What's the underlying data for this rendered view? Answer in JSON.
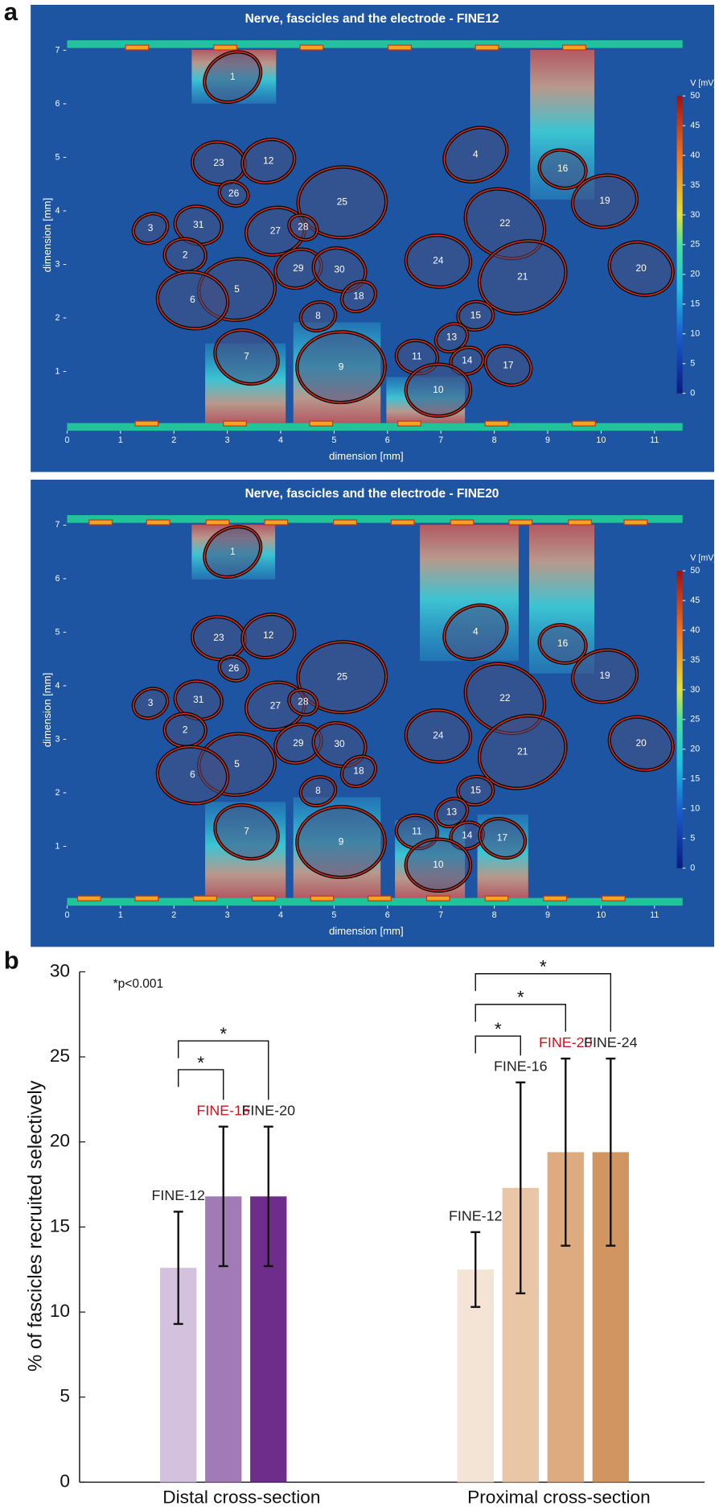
{
  "panel_labels": [
    "a",
    "b"
  ],
  "chart_data": [
    {
      "type": "fascicle-map",
      "title": "Nerve, fascicles and the electrode - FINE12",
      "xlabel": "dimension [mm]",
      "ylabel": "dimension [mm]",
      "xlim": [
        0,
        11.5
      ],
      "ylim": [
        0,
        7.2
      ],
      "xticks": [
        0,
        1,
        2,
        3,
        4,
        5,
        6,
        7,
        8,
        9,
        10,
        11
      ],
      "yticks": [
        1,
        2,
        3,
        4,
        5,
        6,
        7
      ],
      "colorbar_label": "V [mV]",
      "clim": [
        0,
        50
      ],
      "cticks": [
        0,
        5,
        10,
        15,
        20,
        25,
        30,
        35,
        40,
        45,
        50
      ],
      "fascicles": {
        "labels": [
          "1",
          "23",
          "12",
          "26",
          "25",
          "3",
          "31",
          "27",
          "28",
          "2",
          "29",
          "30",
          "5",
          "18",
          "6",
          "8",
          "7",
          "9",
          "4",
          "16",
          "19",
          "22",
          "24",
          "21",
          "20",
          "15",
          "13",
          "11",
          "14",
          "17",
          "10"
        ],
        "x": [
          3.1,
          2.84,
          3.77,
          3.12,
          5.15,
          1.56,
          2.46,
          3.9,
          4.42,
          2.21,
          4.33,
          5.1,
          3.18,
          5.46,
          2.35,
          4.7,
          3.36,
          5.13,
          7.65,
          9.28,
          10.07,
          8.2,
          6.95,
          8.53,
          10.75,
          7.65,
          7.2,
          6.55,
          7.49,
          8.26,
          6.95
        ],
        "y": [
          6.5,
          4.89,
          4.93,
          4.32,
          4.16,
          3.67,
          3.73,
          3.62,
          3.69,
          3.17,
          2.92,
          2.9,
          2.53,
          2.4,
          2.33,
          2.03,
          1.27,
          1.08,
          5.05,
          4.78,
          4.18,
          3.76,
          3.06,
          2.76,
          2.92,
          2.04,
          1.63,
          1.27,
          1.2,
          1.11,
          0.65
        ],
        "sizes": [
          0.5,
          0.45,
          0.45,
          0.25,
          0.75,
          0.3,
          0.4,
          0.5,
          0.25,
          0.35,
          0.4,
          0.45,
          0.65,
          0.3,
          0.6,
          0.3,
          0.55,
          0.75,
          0.55,
          0.4,
          0.55,
          0.7,
          0.55,
          0.75,
          0.55,
          0.3,
          0.28,
          0.35,
          0.28,
          0.4,
          0.55
        ]
      }
    },
    {
      "type": "fascicle-map",
      "title": "Nerve, fascicles and the electrode - FINE20",
      "xlabel": "dimension [mm]",
      "ylabel": "dimension [mm]",
      "xlim": [
        0,
        11.5
      ],
      "ylim": [
        0,
        7.2
      ],
      "xticks": [
        0,
        1,
        2,
        3,
        4,
        5,
        6,
        7,
        8,
        9,
        10,
        11
      ],
      "yticks": [
        1,
        2,
        3,
        4,
        5,
        6,
        7
      ],
      "colorbar_label": "V [mV]",
      "clim": [
        0,
        50
      ],
      "cticks": [
        0,
        5,
        10,
        15,
        20,
        25,
        30,
        35,
        40,
        45,
        50
      ],
      "fascicles": {
        "labels": [
          "1",
          "23",
          "12",
          "26",
          "25",
          "3",
          "31",
          "27",
          "28",
          "2",
          "29",
          "30",
          "5",
          "18",
          "6",
          "8",
          "7",
          "9",
          "4",
          "16",
          "19",
          "22",
          "24",
          "21",
          "20",
          "15",
          "13",
          "11",
          "14",
          "17",
          "10"
        ],
        "x": [
          3.1,
          2.84,
          3.77,
          3.12,
          5.15,
          1.56,
          2.46,
          3.9,
          4.42,
          2.21,
          4.33,
          5.1,
          3.18,
          5.46,
          2.35,
          4.7,
          3.36,
          5.13,
          7.65,
          9.28,
          10.07,
          8.2,
          6.95,
          8.53,
          10.75,
          7.65,
          7.2,
          6.55,
          7.49,
          8.15,
          6.95
        ],
        "y": [
          6.5,
          4.89,
          4.93,
          4.32,
          4.16,
          3.67,
          3.73,
          3.62,
          3.69,
          3.17,
          2.92,
          2.9,
          2.53,
          2.4,
          2.33,
          2.03,
          1.27,
          1.08,
          5.0,
          4.78,
          4.18,
          3.76,
          3.06,
          2.76,
          2.92,
          2.04,
          1.63,
          1.27,
          1.2,
          1.15,
          0.65
        ],
        "sizes": [
          0.5,
          0.45,
          0.45,
          0.25,
          0.75,
          0.3,
          0.4,
          0.5,
          0.25,
          0.35,
          0.4,
          0.45,
          0.65,
          0.3,
          0.6,
          0.3,
          0.55,
          0.75,
          0.55,
          0.4,
          0.55,
          0.7,
          0.55,
          0.75,
          0.55,
          0.3,
          0.28,
          0.35,
          0.28,
          0.4,
          0.55
        ]
      }
    },
    {
      "type": "grouped-bar",
      "ylabel": "% of fascicles recruited selectively",
      "ylim": [
        0,
        30
      ],
      "yticks": [
        0,
        5,
        10,
        15,
        20,
        25,
        30
      ],
      "annotation": "*p<0.001",
      "groups": [
        {
          "name": "Distal cross-section",
          "series": [
            {
              "name": "FINE-12",
              "value": 12.6,
              "error": 3.3,
              "color": "#d4c1dd",
              "label_color": "#222222"
            },
            {
              "name": "FINE-16",
              "value": 16.8,
              "error": 4.1,
              "color": "#a17bb6",
              "label_color": "#d0141e"
            },
            {
              "name": "FINE-20",
              "value": 16.8,
              "error": 4.1,
              "color": "#6e2d8b",
              "label_color": "#222222"
            }
          ]
        },
        {
          "name": "Proximal cross-section",
          "series": [
            {
              "name": "FINE-12",
              "value": 12.5,
              "error": 2.2,
              "color": "#f3e4d6",
              "label_color": "#222222"
            },
            {
              "name": "FINE-16",
              "value": 17.3,
              "error": 6.2,
              "color": "#e9c6a6",
              "label_color": "#222222"
            },
            {
              "name": "FINE-20",
              "value": 19.4,
              "error": 5.5,
              "color": "#deab80",
              "label_color": "#d0141e"
            },
            {
              "name": "FINE-24",
              "value": 19.4,
              "error": 5.5,
              "color": "#d09560",
              "label_color": "#222222"
            }
          ]
        }
      ],
      "comparisons": [
        {
          "group": 0,
          "from": 0,
          "to": 1,
          "label": "*"
        },
        {
          "group": 0,
          "from": 0,
          "to": 2,
          "label": "*"
        },
        {
          "group": 1,
          "from": 0,
          "to": 1,
          "label": "*"
        },
        {
          "group": 1,
          "from": 0,
          "to": 2,
          "label": "*"
        },
        {
          "group": 1,
          "from": 0,
          "to": 3,
          "label": "*"
        }
      ]
    }
  ]
}
